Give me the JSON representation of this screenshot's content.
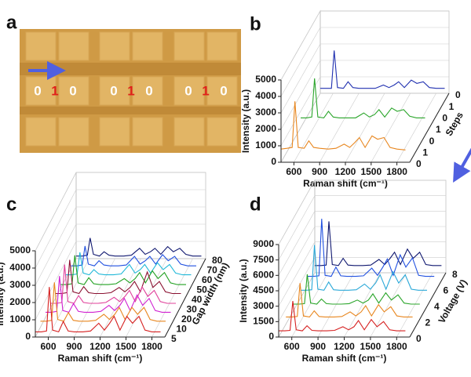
{
  "image_panel": {
    "label": "a",
    "digits": [
      [
        "0",
        "1",
        "0"
      ],
      [
        "0",
        "1",
        "0"
      ],
      [
        "0",
        "1",
        "0"
      ]
    ]
  },
  "chart_data": [
    {
      "type": "waterfall",
      "label": "b",
      "y_label": "Intensity (a.u.)",
      "x_label": "Raman shift (cm⁻¹)",
      "z_label": "Steps",
      "z_labels": [
        "0",
        "1",
        "0",
        "1",
        "0",
        "1",
        "0"
      ],
      "xlim": [
        450,
        1950
      ],
      "xticks": [
        600,
        900,
        1200,
        1500,
        1800
      ],
      "ylim": [
        0,
        5000
      ],
      "yticks": [
        0,
        1000,
        2000,
        3000,
        4000,
        5000
      ],
      "x": [
        450,
        520,
        580,
        612,
        650,
        720,
        774,
        830,
        900,
        1000,
        1090,
        1185,
        1250,
        1311,
        1363,
        1430,
        1510,
        1575,
        1650,
        1720,
        1800,
        1900
      ],
      "series": [
        {
          "color": "#e8861e",
          "values": [
            800,
            850,
            900,
            3700,
            900,
            850,
            1300,
            900,
            850,
            800,
            850,
            1100,
            900,
            1200,
            1500,
            900,
            1600,
            1400,
            1500,
            900,
            800,
            750
          ]
        },
        {
          "color": "#2aa52a",
          "values": [
            600,
            600,
            650,
            3000,
            650,
            600,
            1000,
            650,
            600,
            600,
            600,
            900,
            650,
            800,
            1100,
            650,
            1200,
            1000,
            1100,
            700,
            600,
            600
          ]
        },
        {
          "color": "#2030b0",
          "values": [
            300,
            300,
            300,
            2600,
            350,
            300,
            700,
            350,
            300,
            300,
            300,
            500,
            350,
            500,
            700,
            350,
            800,
            600,
            700,
            350,
            300,
            300
          ]
        }
      ]
    },
    {
      "type": "waterfall",
      "label": "c",
      "y_label": "Intensity (a.u.)",
      "x_label": "Raman shift (cm⁻¹)",
      "z_label": "Gap width (nm)",
      "xlim": [
        450,
        1950
      ],
      "xticks": [
        600,
        900,
        1200,
        1500,
        1800
      ],
      "ylim": [
        0,
        5000
      ],
      "yticks": [
        0,
        1000,
        2000,
        3000,
        4000,
        5000
      ],
      "x": [
        450,
        520,
        580,
        612,
        650,
        720,
        774,
        830,
        900,
        1000,
        1090,
        1185,
        1250,
        1311,
        1363,
        1430,
        1510,
        1575,
        1650,
        1720,
        1800,
        1900
      ],
      "series": [
        {
          "name": "5",
          "color": "#d62020",
          "values": [
            300,
            300,
            350,
            2900,
            400,
            300,
            900,
            350,
            300,
            300,
            350,
            800,
            400,
            800,
            1200,
            400,
            1200,
            800,
            1200,
            400,
            300,
            300
          ]
        },
        {
          "name": "10",
          "color": "#e8861e",
          "values": [
            350,
            350,
            400,
            2600,
            450,
            350,
            850,
            400,
            350,
            350,
            400,
            750,
            450,
            750,
            1150,
            450,
            1150,
            750,
            1150,
            450,
            350,
            350
          ]
        },
        {
          "name": "20",
          "color": "#d020d0",
          "values": [
            300,
            300,
            350,
            2400,
            400,
            300,
            800,
            350,
            300,
            300,
            350,
            700,
            400,
            700,
            1100,
            400,
            1300,
            700,
            1100,
            400,
            300,
            300
          ]
        },
        {
          "name": "30",
          "color": "#e0409a",
          "values": [
            250,
            250,
            300,
            2500,
            350,
            250,
            700,
            300,
            250,
            250,
            300,
            600,
            350,
            650,
            1000,
            350,
            1200,
            650,
            1000,
            350,
            250,
            250
          ]
        },
        {
          "name": "40",
          "color": "#8a1030",
          "values": [
            250,
            250,
            300,
            2200,
            350,
            250,
            650,
            300,
            250,
            250,
            300,
            600,
            350,
            600,
            950,
            350,
            1500,
            600,
            950,
            350,
            250,
            250
          ]
        },
        {
          "name": "50",
          "color": "#20a020",
          "values": [
            200,
            200,
            250,
            1900,
            300,
            200,
            600,
            250,
            200,
            200,
            250,
            550,
            300,
            550,
            900,
            300,
            1000,
            550,
            900,
            300,
            200,
            200
          ]
        },
        {
          "name": "60",
          "color": "#20b8d8",
          "values": [
            200,
            200,
            250,
            1500,
            300,
            200,
            500,
            250,
            200,
            200,
            250,
            800,
            300,
            500,
            800,
            300,
            900,
            500,
            800,
            300,
            200,
            200
          ]
        },
        {
          "name": "70",
          "color": "#2050e0",
          "values": [
            150,
            150,
            200,
            1300,
            250,
            150,
            450,
            200,
            150,
            150,
            200,
            700,
            250,
            450,
            700,
            250,
            800,
            450,
            700,
            250,
            150,
            150
          ]
        },
        {
          "name": "80",
          "color": "#101870",
          "values": [
            150,
            150,
            200,
            1200,
            250,
            150,
            400,
            200,
            150,
            150,
            200,
            600,
            250,
            400,
            600,
            250,
            700,
            400,
            600,
            250,
            150,
            150
          ]
        }
      ]
    },
    {
      "type": "waterfall",
      "label": "d",
      "y_label": "Intensity (a.u.)",
      "x_label": "Raman shift (cm⁻¹)",
      "z_label": "Voltage (V)",
      "z_labels": [
        0,
        2,
        4,
        6,
        8
      ],
      "xlim": [
        450,
        1950
      ],
      "xticks": [
        600,
        900,
        1200,
        1500,
        1800
      ],
      "ylim": [
        0,
        9000
      ],
      "yticks": [
        0,
        1500,
        3000,
        4500,
        6000,
        7500,
        9000
      ],
      "x": [
        450,
        520,
        580,
        612,
        650,
        720,
        774,
        830,
        900,
        1000,
        1090,
        1185,
        1250,
        1311,
        1363,
        1430,
        1510,
        1575,
        1650,
        1720,
        1800,
        1900
      ],
      "series": [
        {
          "color": "#d62020",
          "values": [
            600,
            600,
            650,
            3500,
            700,
            600,
            1100,
            650,
            600,
            600,
            650,
            1000,
            700,
            1000,
            1600,
            700,
            1700,
            1000,
            1500,
            700,
            600,
            600
          ]
        },
        {
          "color": "#e8861e",
          "values": [
            700,
            700,
            750,
            4000,
            800,
            700,
            1300,
            750,
            700,
            700,
            750,
            1200,
            800,
            1200,
            1800,
            800,
            1900,
            1200,
            1700,
            800,
            700,
            700
          ]
        },
        {
          "color": "#2aa52a",
          "values": [
            700,
            700,
            750,
            3600,
            800,
            700,
            1200,
            750,
            700,
            700,
            750,
            1100,
            800,
            1100,
            1700,
            800,
            1800,
            1100,
            1600,
            800,
            700,
            700
          ]
        },
        {
          "color": "#2aa8d8",
          "values": [
            800,
            800,
            850,
            5200,
            900,
            800,
            1600,
            850,
            800,
            800,
            850,
            1400,
            900,
            1500,
            2300,
            900,
            2600,
            1500,
            2300,
            900,
            800,
            800
          ]
        },
        {
          "color": "#2050e0",
          "values": [
            900,
            900,
            950,
            6500,
            1000,
            900,
            1800,
            950,
            900,
            900,
            950,
            1700,
            1000,
            1800,
            2600,
            1000,
            3000,
            1800,
            2700,
            1000,
            900,
            900
          ]
        },
        {
          "color": "#101870",
          "values": [
            700,
            700,
            750,
            5000,
            800,
            700,
            1400,
            750,
            700,
            700,
            750,
            1300,
            800,
            1400,
            2000,
            800,
            2300,
            1400,
            2000,
            800,
            700,
            700
          ]
        }
      ]
    }
  ]
}
